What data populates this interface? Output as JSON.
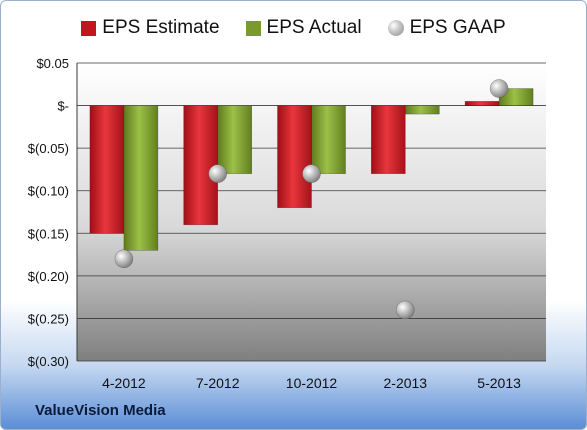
{
  "chart_data": {
    "type": "bar",
    "categories": [
      "4-2012",
      "7-2012",
      "10-2012",
      "2-2013",
      "5-2013"
    ],
    "series": [
      {
        "name": "EPS Estimate",
        "values": [
          -0.15,
          -0.14,
          -0.12,
          -0.08,
          0.005
        ],
        "color": "#c0161e",
        "kind": "bar"
      },
      {
        "name": "EPS Actual",
        "values": [
          -0.17,
          -0.08,
          -0.08,
          -0.01,
          0.02
        ],
        "color": "#7a9a2e",
        "kind": "bar"
      },
      {
        "name": "EPS GAAP",
        "values": [
          -0.18,
          -0.08,
          -0.08,
          -0.24,
          0.02
        ],
        "color": "#a8a8a8",
        "kind": "marker"
      }
    ],
    "ylim": [
      -0.3,
      0.05
    ],
    "yticks": [
      {
        "value": 0.05,
        "label": "$0.05"
      },
      {
        "value": 0.0,
        "label": "$-"
      },
      {
        "value": -0.05,
        "label": "$(0.05)"
      },
      {
        "value": -0.1,
        "label": "$(0.10)"
      },
      {
        "value": -0.15,
        "label": "$(0.15)"
      },
      {
        "value": -0.2,
        "label": "$(0.20)"
      },
      {
        "value": -0.25,
        "label": "$(0.25)"
      },
      {
        "value": -0.3,
        "label": "$(0.30)"
      }
    ],
    "legend_position": "top",
    "grid": true
  },
  "legend": {
    "estimate": "EPS Estimate",
    "actual": "EPS Actual",
    "gaap": "EPS GAAP"
  },
  "footer": {
    "company": "ValueVision Media"
  }
}
